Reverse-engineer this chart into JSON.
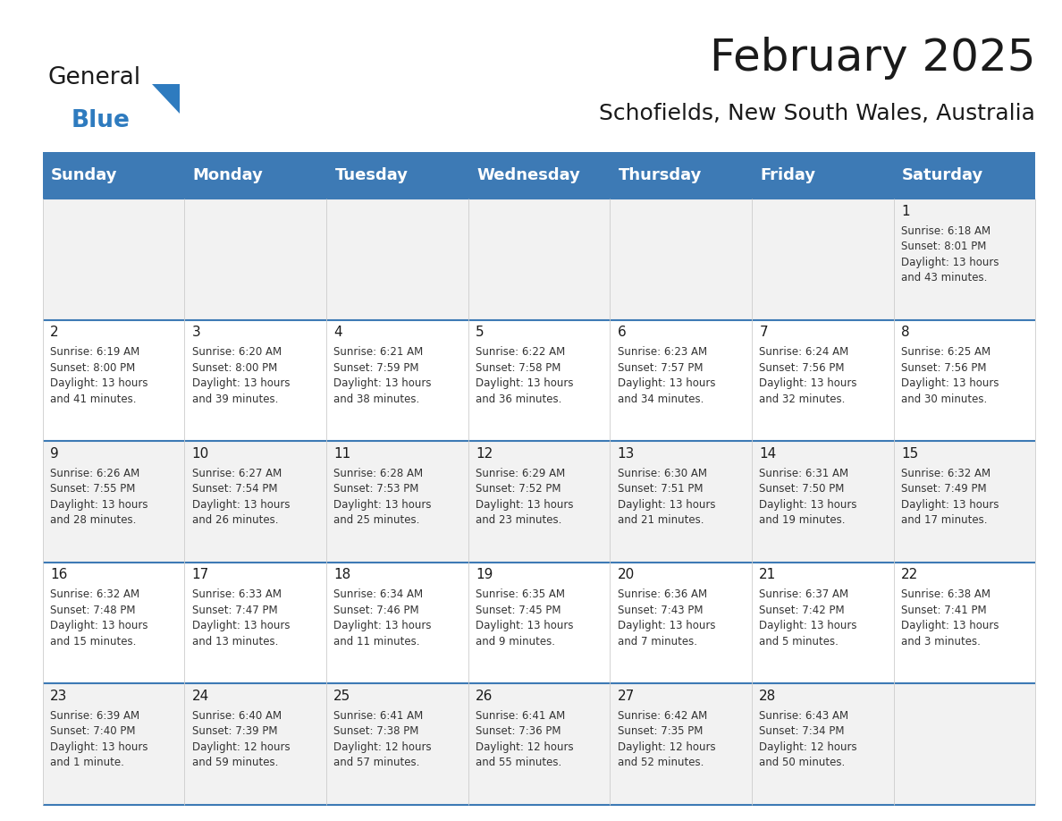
{
  "title": "February 2025",
  "subtitle": "Schofields, New South Wales, Australia",
  "header_color": "#3d7ab5",
  "header_text_color": "#ffffff",
  "day_headers": [
    "Sunday",
    "Monday",
    "Tuesday",
    "Wednesday",
    "Thursday",
    "Friday",
    "Saturday"
  ],
  "title_fontsize": 36,
  "subtitle_fontsize": 18,
  "header_fontsize": 13,
  "day_num_fontsize": 11,
  "cell_fontsize": 8.5,
  "logo_text1": "General",
  "logo_text2": "Blue",
  "logo_color1": "#1a1a1a",
  "logo_color2": "#2e7bbf",
  "logo_triangle_color": "#2e7bbf",
  "weeks": [
    [
      {
        "day": null,
        "info": null
      },
      {
        "day": null,
        "info": null
      },
      {
        "day": null,
        "info": null
      },
      {
        "day": null,
        "info": null
      },
      {
        "day": null,
        "info": null
      },
      {
        "day": null,
        "info": null
      },
      {
        "day": 1,
        "info": "Sunrise: 6:18 AM\nSunset: 8:01 PM\nDaylight: 13 hours\nand 43 minutes."
      }
    ],
    [
      {
        "day": 2,
        "info": "Sunrise: 6:19 AM\nSunset: 8:00 PM\nDaylight: 13 hours\nand 41 minutes."
      },
      {
        "day": 3,
        "info": "Sunrise: 6:20 AM\nSunset: 8:00 PM\nDaylight: 13 hours\nand 39 minutes."
      },
      {
        "day": 4,
        "info": "Sunrise: 6:21 AM\nSunset: 7:59 PM\nDaylight: 13 hours\nand 38 minutes."
      },
      {
        "day": 5,
        "info": "Sunrise: 6:22 AM\nSunset: 7:58 PM\nDaylight: 13 hours\nand 36 minutes."
      },
      {
        "day": 6,
        "info": "Sunrise: 6:23 AM\nSunset: 7:57 PM\nDaylight: 13 hours\nand 34 minutes."
      },
      {
        "day": 7,
        "info": "Sunrise: 6:24 AM\nSunset: 7:56 PM\nDaylight: 13 hours\nand 32 minutes."
      },
      {
        "day": 8,
        "info": "Sunrise: 6:25 AM\nSunset: 7:56 PM\nDaylight: 13 hours\nand 30 minutes."
      }
    ],
    [
      {
        "day": 9,
        "info": "Sunrise: 6:26 AM\nSunset: 7:55 PM\nDaylight: 13 hours\nand 28 minutes."
      },
      {
        "day": 10,
        "info": "Sunrise: 6:27 AM\nSunset: 7:54 PM\nDaylight: 13 hours\nand 26 minutes."
      },
      {
        "day": 11,
        "info": "Sunrise: 6:28 AM\nSunset: 7:53 PM\nDaylight: 13 hours\nand 25 minutes."
      },
      {
        "day": 12,
        "info": "Sunrise: 6:29 AM\nSunset: 7:52 PM\nDaylight: 13 hours\nand 23 minutes."
      },
      {
        "day": 13,
        "info": "Sunrise: 6:30 AM\nSunset: 7:51 PM\nDaylight: 13 hours\nand 21 minutes."
      },
      {
        "day": 14,
        "info": "Sunrise: 6:31 AM\nSunset: 7:50 PM\nDaylight: 13 hours\nand 19 minutes."
      },
      {
        "day": 15,
        "info": "Sunrise: 6:32 AM\nSunset: 7:49 PM\nDaylight: 13 hours\nand 17 minutes."
      }
    ],
    [
      {
        "day": 16,
        "info": "Sunrise: 6:32 AM\nSunset: 7:48 PM\nDaylight: 13 hours\nand 15 minutes."
      },
      {
        "day": 17,
        "info": "Sunrise: 6:33 AM\nSunset: 7:47 PM\nDaylight: 13 hours\nand 13 minutes."
      },
      {
        "day": 18,
        "info": "Sunrise: 6:34 AM\nSunset: 7:46 PM\nDaylight: 13 hours\nand 11 minutes."
      },
      {
        "day": 19,
        "info": "Sunrise: 6:35 AM\nSunset: 7:45 PM\nDaylight: 13 hours\nand 9 minutes."
      },
      {
        "day": 20,
        "info": "Sunrise: 6:36 AM\nSunset: 7:43 PM\nDaylight: 13 hours\nand 7 minutes."
      },
      {
        "day": 21,
        "info": "Sunrise: 6:37 AM\nSunset: 7:42 PM\nDaylight: 13 hours\nand 5 minutes."
      },
      {
        "day": 22,
        "info": "Sunrise: 6:38 AM\nSunset: 7:41 PM\nDaylight: 13 hours\nand 3 minutes."
      }
    ],
    [
      {
        "day": 23,
        "info": "Sunrise: 6:39 AM\nSunset: 7:40 PM\nDaylight: 13 hours\nand 1 minute."
      },
      {
        "day": 24,
        "info": "Sunrise: 6:40 AM\nSunset: 7:39 PM\nDaylight: 12 hours\nand 59 minutes."
      },
      {
        "day": 25,
        "info": "Sunrise: 6:41 AM\nSunset: 7:38 PM\nDaylight: 12 hours\nand 57 minutes."
      },
      {
        "day": 26,
        "info": "Sunrise: 6:41 AM\nSunset: 7:36 PM\nDaylight: 12 hours\nand 55 minutes."
      },
      {
        "day": 27,
        "info": "Sunrise: 6:42 AM\nSunset: 7:35 PM\nDaylight: 12 hours\nand 52 minutes."
      },
      {
        "day": 28,
        "info": "Sunrise: 6:43 AM\nSunset: 7:34 PM\nDaylight: 12 hours\nand 50 minutes."
      },
      {
        "day": null,
        "info": null
      }
    ]
  ]
}
